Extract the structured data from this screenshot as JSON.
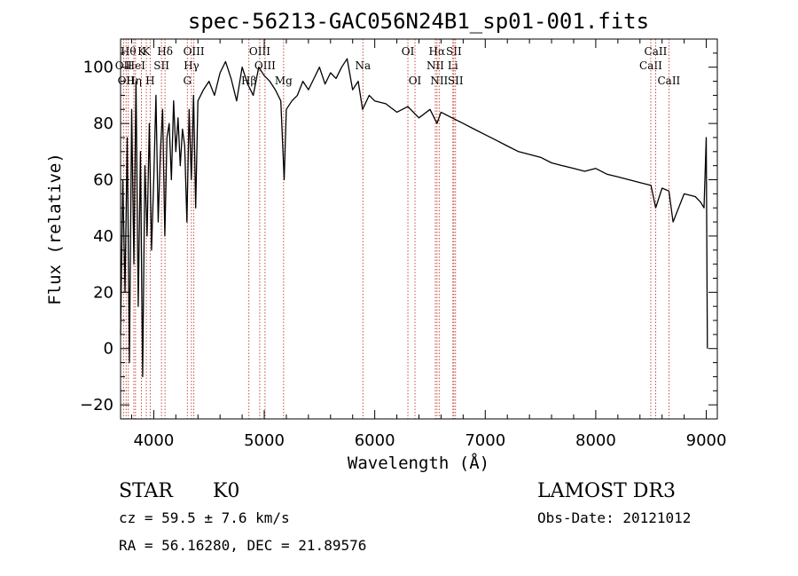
{
  "chart_data": {
    "type": "line",
    "title": "spec-56213-GAC056N24B1_sp01-001.fits",
    "xlabel": "Wavelength (Å)",
    "ylabel": "Flux (relative)",
    "xlim": [
      3700,
      9100
    ],
    "ylim": [
      -25,
      110
    ],
    "xticks": [
      4000,
      5000,
      6000,
      7000,
      8000,
      9000
    ],
    "yticks": [
      -20,
      0,
      20,
      40,
      60,
      80,
      100
    ],
    "grid": false,
    "series": [
      {
        "name": "flux",
        "x": [
          3700,
          3720,
          3740,
          3760,
          3780,
          3800,
          3820,
          3840,
          3860,
          3880,
          3900,
          3920,
          3940,
          3960,
          3980,
          4000,
          4020,
          4040,
          4060,
          4080,
          4100,
          4120,
          4140,
          4160,
          4180,
          4200,
          4220,
          4240,
          4260,
          4280,
          4300,
          4320,
          4340,
          4360,
          4380,
          4400,
          4450,
          4500,
          4550,
          4600,
          4650,
          4700,
          4750,
          4800,
          4850,
          4900,
          4950,
          5000,
          5050,
          5100,
          5150,
          5180,
          5200,
          5250,
          5300,
          5350,
          5400,
          5450,
          5500,
          5550,
          5600,
          5650,
          5700,
          5750,
          5800,
          5850,
          5890,
          5950,
          6000,
          6100,
          6200,
          6300,
          6400,
          6500,
          6563,
          6600,
          6700,
          6800,
          6900,
          7000,
          7100,
          7200,
          7300,
          7400,
          7500,
          7600,
          7700,
          7800,
          7900,
          8000,
          8100,
          8200,
          8300,
          8400,
          8500,
          8542,
          8600,
          8662,
          8700,
          8800,
          8900,
          8950,
          8980,
          9000,
          9010
        ],
        "y": [
          5,
          60,
          20,
          75,
          -5,
          85,
          30,
          95,
          15,
          70,
          -10,
          65,
          40,
          80,
          35,
          60,
          90,
          45,
          70,
          85,
          40,
          75,
          80,
          60,
          88,
          70,
          82,
          65,
          78,
          72,
          45,
          85,
          60,
          90,
          50,
          88,
          92,
          95,
          90,
          98,
          102,
          96,
          88,
          100,
          94,
          90,
          100,
          97,
          95,
          92,
          88,
          60,
          85,
          88,
          90,
          95,
          92,
          96,
          100,
          94,
          98,
          96,
          100,
          103,
          92,
          95,
          85,
          90,
          88,
          87,
          84,
          86,
          82,
          85,
          80,
          84,
          82,
          80,
          78,
          76,
          74,
          72,
          70,
          69,
          68,
          66,
          65,
          64,
          63,
          64,
          62,
          61,
          60,
          59,
          58,
          50,
          57,
          56,
          45,
          55,
          54,
          52,
          50,
          75,
          0
        ]
      }
    ],
    "line_markers": [
      {
        "wavelength": 3727,
        "label": "OII",
        "row": 1
      },
      {
        "wavelength": 3750,
        "label": "OII",
        "row": 2
      },
      {
        "wavelength": 3770,
        "label": "Hθ",
        "row": 0
      },
      {
        "wavelength": 3820,
        "label": "Hη",
        "row": 2
      },
      {
        "wavelength": 3835,
        "label": "HeI",
        "row": 1
      },
      {
        "wavelength": 3889,
        "label": "K",
        "row": 0
      },
      {
        "wavelength": 3933,
        "label": "K",
        "row": 0
      },
      {
        "wavelength": 3968,
        "label": "H",
        "row": 2
      },
      {
        "wavelength": 4070,
        "label": "SII",
        "row": 1
      },
      {
        "wavelength": 4102,
        "label": "Hδ",
        "row": 0
      },
      {
        "wavelength": 4304,
        "label": "G",
        "row": 2
      },
      {
        "wavelength": 4341,
        "label": "Hγ",
        "row": 1
      },
      {
        "wavelength": 4363,
        "label": "OIII",
        "row": 0
      },
      {
        "wavelength": 4861,
        "label": "Hβ",
        "row": 2
      },
      {
        "wavelength": 4959,
        "label": "OIII",
        "row": 0
      },
      {
        "wavelength": 5007,
        "label": "OIII",
        "row": 1
      },
      {
        "wavelength": 5175,
        "label": "Mg",
        "row": 2
      },
      {
        "wavelength": 5893,
        "label": "Na",
        "row": 1
      },
      {
        "wavelength": 6300,
        "label": "OI",
        "row": 0
      },
      {
        "wavelength": 6364,
        "label": "OI",
        "row": 2
      },
      {
        "wavelength": 6548,
        "label": "NII",
        "row": 1
      },
      {
        "wavelength": 6563,
        "label": "Hα",
        "row": 0
      },
      {
        "wavelength": 6583,
        "label": "NII",
        "row": 2
      },
      {
        "wavelength": 6707,
        "label": "Li",
        "row": 1
      },
      {
        "wavelength": 6716,
        "label": "SII",
        "row": 0
      },
      {
        "wavelength": 6731,
        "label": "SII",
        "row": 2
      },
      {
        "wavelength": 8498,
        "label": "CaII",
        "row": 1
      },
      {
        "wavelength": 8542,
        "label": "CaII",
        "row": 0
      },
      {
        "wavelength": 8662,
        "label": "CaII",
        "row": 2
      }
    ]
  },
  "info": {
    "class_label": "STAR",
    "subclass": "K0",
    "survey": "LAMOST DR3",
    "redshift": "cz = 59.5 ± 7.6 km/s",
    "obs_date": "Obs-Date: 20121012",
    "coords": "RA =  56.16280, DEC =  21.89576"
  }
}
